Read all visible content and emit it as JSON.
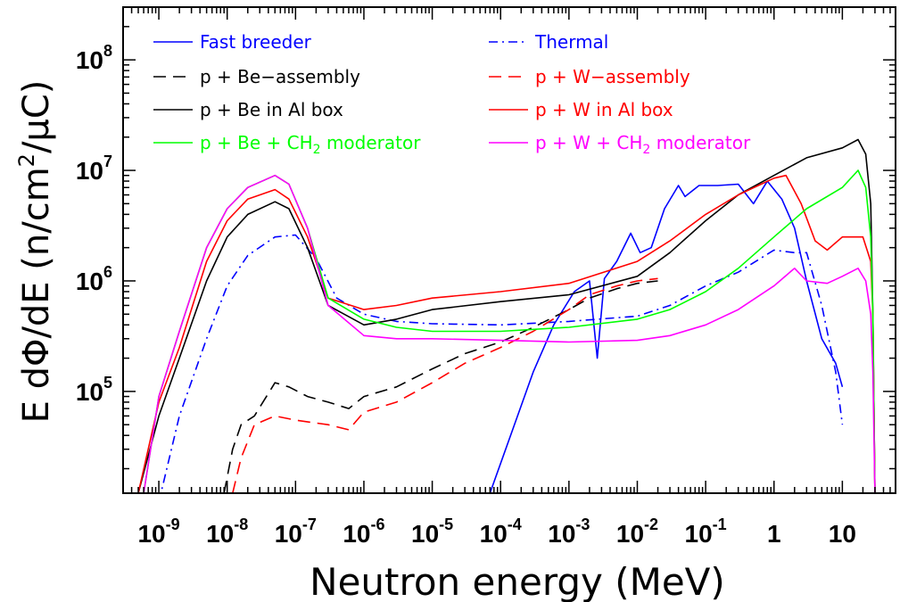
{
  "chart_data": {
    "type": "line",
    "xscale": "log",
    "yscale": "log",
    "xlim": [
      3e-10,
      60
    ],
    "ylim": [
      12000,
      300000000.0
    ],
    "xlabel": "Neutron energy  (MeV)",
    "ylabel_parts": [
      "E dΦ/dE  (n/cm",
      "2",
      "/μC)"
    ],
    "x_ticks": [
      {
        "value": 1e-09,
        "base": "10",
        "exp": "-9"
      },
      {
        "value": 1e-08,
        "base": "10",
        "exp": "-8"
      },
      {
        "value": 1e-07,
        "base": "10",
        "exp": "-7"
      },
      {
        "value": 1e-06,
        "base": "10",
        "exp": "-6"
      },
      {
        "value": 1e-05,
        "base": "10",
        "exp": "-5"
      },
      {
        "value": 0.0001,
        "base": "10",
        "exp": "-4"
      },
      {
        "value": 0.001,
        "base": "10",
        "exp": "-3"
      },
      {
        "value": 0.01,
        "base": "10",
        "exp": "-2"
      },
      {
        "value": 0.1,
        "base": "10",
        "exp": "-1"
      },
      {
        "value": 1,
        "base": "1",
        "exp": ""
      },
      {
        "value": 10,
        "base": "10",
        "exp": ""
      }
    ],
    "y_ticks": [
      {
        "value": 100000.0,
        "base": "10",
        "exp": "5"
      },
      {
        "value": 1000000.0,
        "base": "10",
        "exp": "6"
      },
      {
        "value": 10000000.0,
        "base": "10",
        "exp": "7"
      },
      {
        "value": 100000000.0,
        "base": "10",
        "exp": "8"
      }
    ],
    "legend_placement": "top",
    "series": [
      {
        "name": "Fast breeder",
        "name_parts": [
          "Fast breeder"
        ],
        "color": "#0000ff",
        "dash": "solid",
        "points": [
          [
            7e-05,
            12000
          ],
          [
            0.00015,
            45000
          ],
          [
            0.0003,
            150000
          ],
          [
            0.0006,
            400000
          ],
          [
            0.0012,
            800000
          ],
          [
            0.002,
            1000000
          ],
          [
            0.0026,
            200000
          ],
          [
            0.0033,
            1050000
          ],
          [
            0.005,
            1500000
          ],
          [
            0.008,
            2700000
          ],
          [
            0.011,
            1800000
          ],
          [
            0.016,
            2000000
          ],
          [
            0.025,
            4500000
          ],
          [
            0.04,
            7300000
          ],
          [
            0.05,
            5800000
          ],
          [
            0.08,
            7300000
          ],
          [
            0.15,
            7300000
          ],
          [
            0.3,
            7500000
          ],
          [
            0.5,
            5000000
          ],
          [
            0.8,
            8000000
          ],
          [
            1.3,
            5500000
          ],
          [
            2,
            3000000
          ],
          [
            3,
            1000000
          ],
          [
            5,
            300000
          ],
          [
            8,
            180000
          ],
          [
            10,
            110000
          ]
        ]
      },
      {
        "name": "Thermal",
        "name_parts": [
          "Thermal"
        ],
        "color": "#0000ff",
        "dash": "dashdot",
        "points": [
          [
            1e-09,
            10000
          ],
          [
            2e-09,
            60000
          ],
          [
            5e-09,
            300000
          ],
          [
            1e-08,
            900000
          ],
          [
            2e-08,
            1700000
          ],
          [
            5e-08,
            2500000
          ],
          [
            1e-07,
            2600000
          ],
          [
            2e-07,
            1600000
          ],
          [
            4e-07,
            700000
          ],
          [
            1e-06,
            500000
          ],
          [
            3e-06,
            430000
          ],
          [
            1e-05,
            410000
          ],
          [
            0.0001,
            400000
          ],
          [
            0.001,
            430000
          ],
          [
            0.01,
            480000
          ],
          [
            0.03,
            600000
          ],
          [
            0.1,
            900000
          ],
          [
            0.3,
            1200000
          ],
          [
            1,
            1900000
          ],
          [
            2,
            1800000
          ],
          [
            3,
            1800000
          ],
          [
            5,
            600000
          ],
          [
            8,
            150000
          ],
          [
            10,
            50000
          ]
        ]
      },
      {
        "name": "p + Be−assembly",
        "name_parts": [
          "p + Be−assembly"
        ],
        "color": "#000000",
        "dash": "dashed",
        "points": [
          [
            9e-09,
            12000
          ],
          [
            1.2e-08,
            30000
          ],
          [
            1.6e-08,
            50000
          ],
          [
            2.5e-08,
            60000
          ],
          [
            5e-08,
            120000
          ],
          [
            8e-08,
            110000
          ],
          [
            1.5e-07,
            90000
          ],
          [
            3e-07,
            80000
          ],
          [
            6e-07,
            70000
          ],
          [
            1e-06,
            90000
          ],
          [
            3e-06,
            110000
          ],
          [
            1e-05,
            160000
          ],
          [
            3e-05,
            220000
          ],
          [
            0.0001,
            280000
          ],
          [
            0.0003,
            380000
          ],
          [
            0.001,
            550000
          ],
          [
            0.002,
            700000
          ],
          [
            0.005,
            850000
          ],
          [
            0.01,
            950000
          ],
          [
            0.02,
            1000000
          ]
        ]
      },
      {
        "name": "p + W−assembly",
        "name_parts": [
          "p + W−assembly"
        ],
        "color": "#ff0000",
        "dash": "dashed",
        "points": [
          [
            1.2e-08,
            12000
          ],
          [
            1.6e-08,
            25000
          ],
          [
            2.5e-08,
            50000
          ],
          [
            5e-08,
            60000
          ],
          [
            1e-07,
            55000
          ],
          [
            3e-07,
            50000
          ],
          [
            6e-07,
            45000
          ],
          [
            1e-06,
            65000
          ],
          [
            3e-06,
            80000
          ],
          [
            1e-05,
            120000
          ],
          [
            3e-05,
            180000
          ],
          [
            0.0001,
            250000
          ],
          [
            0.0003,
            350000
          ],
          [
            0.001,
            550000
          ],
          [
            0.002,
            750000
          ],
          [
            0.005,
            900000
          ],
          [
            0.01,
            1000000
          ],
          [
            0.02,
            1050000
          ]
        ]
      },
      {
        "name": "p + Be in Al box",
        "name_parts": [
          "p + Be in Al box"
        ],
        "color": "#000000",
        "dash": "solid",
        "points": [
          [
            5e-10,
            12000
          ],
          [
            1e-09,
            60000
          ],
          [
            2e-09,
            200000
          ],
          [
            5e-09,
            1000000
          ],
          [
            1e-08,
            2500000
          ],
          [
            2e-08,
            4000000
          ],
          [
            5e-08,
            5200000
          ],
          [
            8e-08,
            4500000
          ],
          [
            1.5e-07,
            2000000
          ],
          [
            3e-07,
            600000
          ],
          [
            1e-06,
            400000
          ],
          [
            3e-06,
            450000
          ],
          [
            1e-05,
            550000
          ],
          [
            0.0001,
            650000
          ],
          [
            0.001,
            750000
          ],
          [
            0.01,
            1100000
          ],
          [
            0.03,
            1800000
          ],
          [
            0.1,
            3500000
          ],
          [
            0.3,
            6000000
          ],
          [
            1,
            9000000
          ],
          [
            3,
            13000000
          ],
          [
            10,
            16000000
          ],
          [
            17,
            19000000
          ],
          [
            22,
            14000000
          ],
          [
            26,
            5000000
          ],
          [
            28,
            500000
          ],
          [
            30,
            12000
          ]
        ]
      },
      {
        "name": "p + W in Al box",
        "name_parts": [
          "p + W in Al box"
        ],
        "color": "#ff0000",
        "dash": "solid",
        "points": [
          [
            5e-10,
            12000
          ],
          [
            1e-09,
            80000
          ],
          [
            2e-09,
            250000
          ],
          [
            5e-09,
            1500000
          ],
          [
            1e-08,
            3500000
          ],
          [
            2e-08,
            5500000
          ],
          [
            5e-08,
            6700000
          ],
          [
            8e-08,
            5500000
          ],
          [
            1.5e-07,
            2500000
          ],
          [
            3e-07,
            700000
          ],
          [
            1e-06,
            550000
          ],
          [
            3e-06,
            600000
          ],
          [
            1e-05,
            700000
          ],
          [
            0.0001,
            800000
          ],
          [
            0.001,
            950000
          ],
          [
            0.01,
            1500000
          ],
          [
            0.03,
            2300000
          ],
          [
            0.1,
            4000000
          ],
          [
            0.3,
            6000000
          ],
          [
            1,
            8500000
          ],
          [
            1.5,
            9000000
          ],
          [
            2.5,
            5000000
          ],
          [
            4,
            2300000
          ],
          [
            6,
            1900000
          ],
          [
            10,
            2500000
          ],
          [
            20,
            2500000
          ],
          [
            26,
            1500000
          ],
          [
            28,
            500000
          ],
          [
            30,
            12000
          ]
        ]
      },
      {
        "name": "p + Be + CH2 moderator",
        "name_parts": [
          "p + Be + CH",
          "2",
          " moderator"
        ],
        "color": "#00ff00",
        "dash": "solid",
        "points": [
          [
            6e-10,
            12000
          ],
          [
            1e-09,
            90000
          ],
          [
            2e-09,
            350000
          ],
          [
            5e-09,
            2000000
          ],
          [
            1e-08,
            4500000
          ],
          [
            2e-08,
            7000000
          ],
          [
            5e-08,
            9000000
          ],
          [
            8e-08,
            7500000
          ],
          [
            1.5e-07,
            3000000
          ],
          [
            3e-07,
            700000
          ],
          [
            1e-06,
            450000
          ],
          [
            3e-06,
            380000
          ],
          [
            1e-05,
            350000
          ],
          [
            0.0001,
            350000
          ],
          [
            0.001,
            380000
          ],
          [
            0.01,
            450000
          ],
          [
            0.03,
            550000
          ],
          [
            0.1,
            800000
          ],
          [
            0.3,
            1300000
          ],
          [
            1,
            2500000
          ],
          [
            3,
            4500000
          ],
          [
            10,
            7000000
          ],
          [
            17,
            10000000
          ],
          [
            22,
            7000000
          ],
          [
            26,
            2500000
          ],
          [
            28,
            500000
          ],
          [
            30,
            12000
          ]
        ]
      },
      {
        "name": "p + W + CH2 moderator",
        "name_parts": [
          "p + W + CH",
          "2",
          " moderator"
        ],
        "color": "#ff00ff",
        "dash": "solid",
        "points": [
          [
            6e-10,
            12000
          ],
          [
            1e-09,
            90000
          ],
          [
            2e-09,
            350000
          ],
          [
            5e-09,
            2000000
          ],
          [
            1e-08,
            4500000
          ],
          [
            2e-08,
            7000000
          ],
          [
            5e-08,
            9000000
          ],
          [
            8e-08,
            7500000
          ],
          [
            1.5e-07,
            3000000
          ],
          [
            3e-07,
            600000
          ],
          [
            1e-06,
            320000
          ],
          [
            3e-06,
            300000
          ],
          [
            1e-05,
            300000
          ],
          [
            0.0001,
            290000
          ],
          [
            0.001,
            280000
          ],
          [
            0.01,
            290000
          ],
          [
            0.03,
            320000
          ],
          [
            0.1,
            400000
          ],
          [
            0.3,
            550000
          ],
          [
            1,
            900000
          ],
          [
            2,
            1300000
          ],
          [
            3,
            1000000
          ],
          [
            6,
            950000
          ],
          [
            10,
            1100000
          ],
          [
            17,
            1300000
          ],
          [
            22,
            1000000
          ],
          [
            26,
            500000
          ],
          [
            28,
            150000
          ],
          [
            30,
            12000
          ]
        ]
      }
    ]
  }
}
